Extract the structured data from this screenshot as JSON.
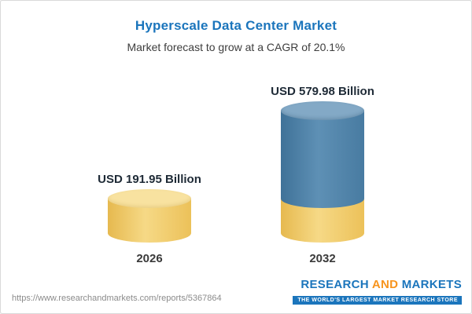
{
  "header": {
    "title": "Hyperscale Data Center Market",
    "subtitle": "Market forecast to grow at a CAGR of 20.1%"
  },
  "footer": {
    "source_url": "https://www.researchandmarkets.com/reports/5367864",
    "logo": {
      "word1": "RESEARCH",
      "word2": "AND",
      "word3": "MARKETS",
      "tagline": "THE WORLD'S LARGEST MARKET RESEARCH STORE"
    }
  },
  "chart_data": {
    "type": "bar",
    "title": "Hyperscale Data Center Market",
    "subtitle": "Market forecast to grow at a CAGR of 20.1%",
    "cagr": "20.1%",
    "categories": [
      "2026",
      "2032"
    ],
    "values": [
      191.95,
      579.98
    ],
    "value_labels": [
      "USD 191.95 Billion",
      "USD 579.98 Billion"
    ],
    "unit": "USD Billion",
    "ylim": [
      0,
      579.98
    ],
    "grid": false,
    "legend": false,
    "bar_style": "3d-cylinder",
    "note": "2032 bar is stacked: base segment equals 2026 value (yellow), growth portion above it (blue)",
    "colors": {
      "bar_2026": "#f0c75f",
      "bar_2032_growth": "#4d80a6",
      "bar_2032_base": "#f0c75f",
      "title_text": "#1b75bc",
      "logo_blue": "#1b75bc",
      "logo_orange": "#f7941d"
    }
  }
}
